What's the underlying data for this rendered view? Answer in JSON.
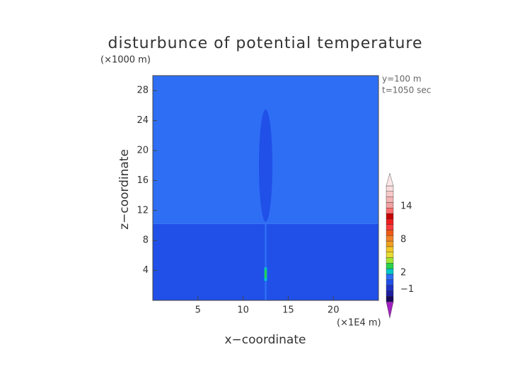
{
  "chart_data": {
    "type": "shaded-contour",
    "title": "disturbunce of potential temperature",
    "y_unit": "(×1000 m)",
    "annotations": [
      "y=100 m",
      "t=1050 sec"
    ],
    "x_label": "x−coordinate",
    "x_unit": "(×1E4 m)",
    "y_label": "z−coordinate",
    "xlim": [
      0,
      25
    ],
    "ylim": [
      0,
      30
    ],
    "xticks": [
      5,
      10,
      15,
      20
    ],
    "yticks": [
      4,
      8,
      12,
      16,
      20,
      24,
      28
    ],
    "field": {
      "rects": [
        {
          "x": [
            0,
            25
          ],
          "z": [
            10.2,
            30
          ],
          "value": 1.5
        },
        {
          "x": [
            0,
            25
          ],
          "z": [
            0,
            10.2
          ],
          "value": 0.5
        },
        {
          "x": [
            12.4,
            12.6
          ],
          "z": [
            0,
            10.2
          ],
          "value": 1.5
        },
        {
          "x": [
            12.35,
            12.65
          ],
          "z": [
            2.6,
            4.4
          ],
          "value": 2.5
        },
        {
          "x": [
            12.4,
            12.6
          ],
          "z": [
            3,
            4.1
          ],
          "value": 3.5
        }
      ],
      "ellipses": [
        {
          "cx": 12.5,
          "cz": 18,
          "rx": 0.75,
          "rz": 7.5,
          "value": 0.5
        }
      ]
    },
    "colorbar": {
      "levels": [
        -3,
        -2,
        -1,
        0,
        1,
        2,
        3,
        4,
        5,
        6,
        7,
        8,
        9,
        10,
        11,
        12,
        13,
        14,
        15,
        16,
        17,
        18
      ],
      "colors": [
        "#190a5a",
        "#1e1ea0",
        "#1e32c8",
        "#2050e8",
        "#2e6ef5",
        "#00c8c8",
        "#28d24b",
        "#a0e632",
        "#e6dc32",
        "#f0c828",
        "#f0a01e",
        "#f08228",
        "#f05a14",
        "#fa3c3c",
        "#f01e1e",
        "#c80000",
        "#ff6e6e",
        "#f0a0a0",
        "#f5b4b4",
        "#f8c8c8",
        "#fadcdc"
      ],
      "under_color": "#a020c0",
      "over_color": "#fae6e6",
      "ticks": [
        {
          "value": -1,
          "label": "−1"
        },
        2,
        8,
        14
      ]
    }
  }
}
